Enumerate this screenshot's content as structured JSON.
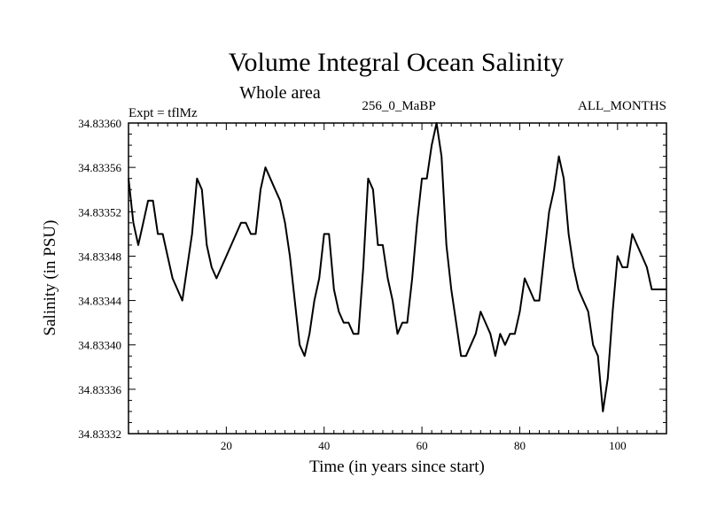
{
  "chart_data": {
    "type": "line",
    "title": "Volume Integral Ocean Salinity",
    "subtitle": "Whole area",
    "annotations": {
      "left": "Expt = tflMz",
      "center": "256_0_MaBP",
      "right": "ALL_MONTHS"
    },
    "xlabel": "Time (in years since start)",
    "ylabel": "Salinity (in PSU)",
    "xlim": [
      0,
      110
    ],
    "ylim": [
      34.83332,
      34.8336
    ],
    "x_ticks": [
      20,
      40,
      60,
      80,
      100
    ],
    "y_ticks": [
      34.83332,
      34.83336,
      34.8334,
      34.83344,
      34.83348,
      34.83352,
      34.83356,
      34.8336
    ],
    "grid": false,
    "series": [
      {
        "name": "Salinity",
        "x": [
          0,
          1,
          2,
          3,
          4,
          5,
          6,
          7,
          8,
          9,
          10,
          11,
          12,
          13,
          14,
          15,
          16,
          17,
          18,
          19,
          20,
          21,
          22,
          23,
          24,
          25,
          26,
          27,
          28,
          29,
          30,
          31,
          32,
          33,
          34,
          35,
          36,
          37,
          38,
          39,
          40,
          41,
          42,
          43,
          44,
          45,
          46,
          47,
          48,
          49,
          50,
          51,
          52,
          53,
          54,
          55,
          56,
          57,
          58,
          59,
          60,
          61,
          62,
          63,
          64,
          65,
          66,
          67,
          68,
          69,
          70,
          71,
          72,
          73,
          74,
          75,
          76,
          77,
          78,
          79,
          80,
          81,
          82,
          83,
          84,
          85,
          86,
          87,
          88,
          89,
          90,
          91,
          92,
          93,
          94,
          95,
          96,
          97,
          98,
          99,
          100,
          101,
          102,
          103,
          104,
          105,
          106,
          107,
          108,
          109,
          110
        ],
        "values": [
          34.83355,
          34.83351,
          34.83349,
          34.83351,
          34.83353,
          34.83353,
          34.8335,
          34.8335,
          34.83348,
          34.83346,
          34.83345,
          34.83344,
          34.83347,
          34.8335,
          34.83355,
          34.83354,
          34.83349,
          34.83347,
          34.83346,
          34.83347,
          34.83348,
          34.83349,
          34.8335,
          34.83351,
          34.83351,
          34.8335,
          34.8335,
          34.83354,
          34.83356,
          34.83355,
          34.83354,
          34.83353,
          34.83351,
          34.83348,
          34.83344,
          34.8334,
          34.83339,
          34.83341,
          34.83344,
          34.83346,
          34.8335,
          34.8335,
          34.83345,
          34.83343,
          34.83342,
          34.83342,
          34.83341,
          34.83341,
          34.83347,
          34.83355,
          34.83354,
          34.83349,
          34.83349,
          34.83346,
          34.83344,
          34.83341,
          34.83342,
          34.83342,
          34.83346,
          34.83351,
          34.83355,
          34.83355,
          34.83358,
          34.8336,
          34.83357,
          34.83349,
          34.83345,
          34.83342,
          34.83339,
          34.83339,
          34.8334,
          34.83341,
          34.83343,
          34.83342,
          34.83341,
          34.83339,
          34.83341,
          34.8334,
          34.83341,
          34.83341,
          34.83343,
          34.83346,
          34.83345,
          34.83344,
          34.83344,
          34.83348,
          34.83352,
          34.83354,
          34.83357,
          34.83355,
          34.8335,
          34.83347,
          34.83345,
          34.83344,
          34.83343,
          34.8334,
          34.83339,
          34.83334,
          34.83337,
          34.83343,
          34.83348,
          34.83347,
          34.83347,
          34.8335,
          34.83349,
          34.83348,
          34.83347,
          34.83345,
          34.83345,
          34.83345,
          34.83345
        ]
      }
    ]
  }
}
